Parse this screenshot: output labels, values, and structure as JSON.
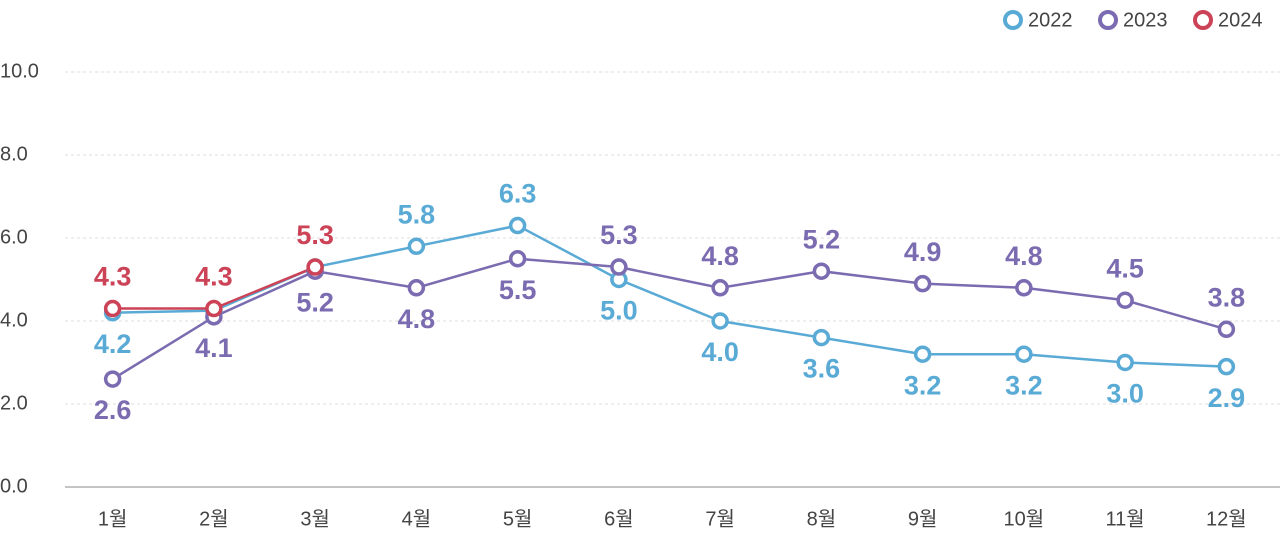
{
  "chart_data": {
    "type": "line",
    "categories": [
      "1월",
      "2월",
      "3월",
      "4월",
      "5월",
      "6월",
      "7월",
      "8월",
      "9월",
      "10월",
      "11월",
      "12월"
    ],
    "series": [
      {
        "name": "2022",
        "color": "#5aaad6",
        "values": [
          4.2,
          4.25,
          5.3,
          5.8,
          6.3,
          5.0,
          4.0,
          3.6,
          3.2,
          3.2,
          3.0,
          2.9
        ],
        "value_labels": [
          "4.2",
          null,
          null,
          "5.8",
          "6.3",
          "5.0",
          "4.0",
          "3.6",
          "3.2",
          "3.2",
          "3.0",
          "2.9"
        ]
      },
      {
        "name": "2023",
        "color": "#7b6bb0",
        "values": [
          2.6,
          4.1,
          5.2,
          4.8,
          5.5,
          5.3,
          4.8,
          5.2,
          4.9,
          4.8,
          4.5,
          3.8
        ],
        "value_labels": [
          "2.6",
          "4.1",
          "5.2",
          "4.8",
          "5.5",
          "5.3",
          "4.8",
          "5.2",
          "4.9",
          "4.8",
          "4.5",
          "3.8"
        ]
      },
      {
        "name": "2024",
        "color": "#cc4257",
        "values": [
          4.3,
          4.3,
          5.3,
          null,
          null,
          null,
          null,
          null,
          null,
          null,
          null,
          null
        ],
        "value_labels": [
          "4.3",
          "4.3",
          "5.3",
          null,
          null,
          null,
          null,
          null,
          null,
          null,
          null,
          null
        ]
      }
    ],
    "ylim": [
      0,
      10
    ],
    "yticks": [
      {
        "value": 0,
        "label": "0.0"
      },
      {
        "value": 2,
        "label": "2.0"
      },
      {
        "value": 4,
        "label": "4.0"
      },
      {
        "value": 6,
        "label": "6.0"
      },
      {
        "value": 8,
        "label": "8.0"
      },
      {
        "value": 10,
        "label": "10.0"
      }
    ],
    "grid": true,
    "legend": "top-right"
  }
}
